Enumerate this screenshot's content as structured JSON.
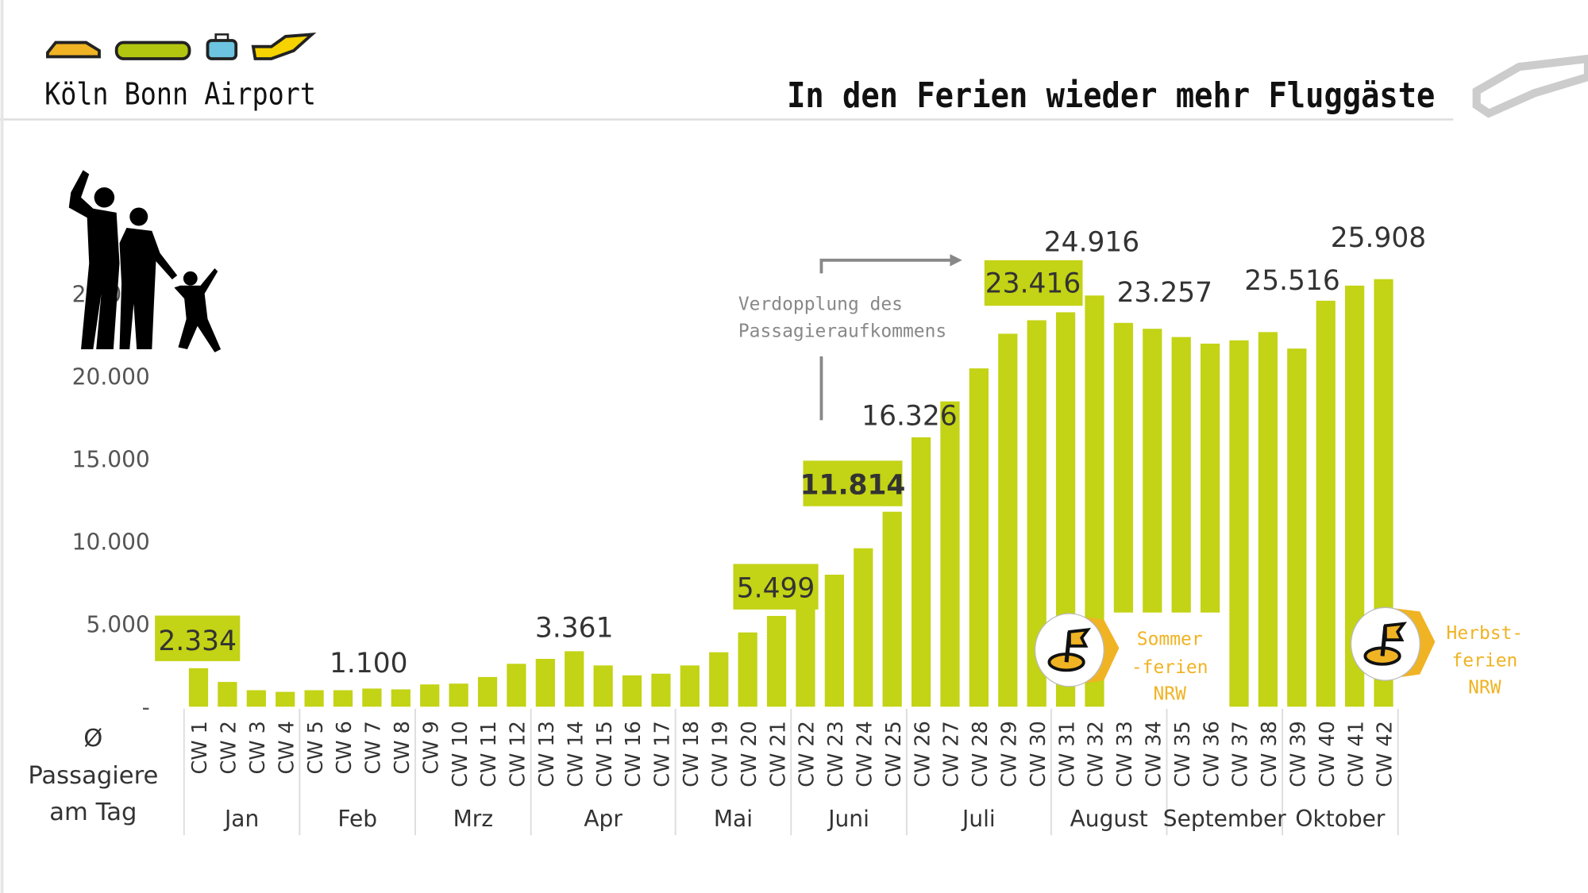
{
  "header": {
    "brand": "Köln Bonn Airport",
    "title": "In den Ferien wieder mehr Fluggäste",
    "icons": [
      "car-icon",
      "bus-icon",
      "luggage-icon",
      "airplane-icon"
    ]
  },
  "colors": {
    "bar": "#c3d315",
    "label_box": "#c3d315",
    "holiday": "#f0b323",
    "text": "#333333"
  },
  "annotation": {
    "line1": "Verdopplung des",
    "line2": "Passagieraufkommens"
  },
  "holidays": [
    {
      "line1": "Sommer",
      "line2": "-ferien",
      "line3": "NRW",
      "icon": "flag-icon"
    },
    {
      "line1": "Herbst-",
      "line2": "ferien",
      "line3": "NRW",
      "icon": "flag-icon"
    }
  ],
  "chart_data": {
    "type": "bar",
    "title": "In den Ferien wieder mehr Fluggäste",
    "ylabel": "Ø Passagiere am Tag",
    "ylim": [
      0,
      26000
    ],
    "yticks": [
      "-",
      "5.000",
      "10.000",
      "15.000",
      "20.000",
      "25.000"
    ],
    "ytick_values": [
      0,
      5000,
      10000,
      15000,
      20000,
      25000
    ],
    "categories": [
      "CW 1",
      "CW 2",
      "CW 3",
      "CW 4",
      "CW 5",
      "CW 6",
      "CW 7",
      "CW 8",
      "CW 9",
      "CW 10",
      "CW 11",
      "CW 12",
      "CW 13",
      "CW 14",
      "CW 15",
      "CW 16",
      "CW 17",
      "CW 18",
      "CW 19",
      "CW 20",
      "CW 21",
      "CW 22",
      "CW 23",
      "CW 24",
      "CW 25",
      "CW 26",
      "CW 27",
      "CW 28",
      "CW 29",
      "CW 30",
      "CW 31",
      "CW 32",
      "CW 33",
      "CW 34",
      "CW 35",
      "CW 36",
      "CW 37",
      "CW 38",
      "CW 39",
      "CW 40",
      "CW 41",
      "CW 42"
    ],
    "values": [
      2334,
      1500,
      1000,
      900,
      1000,
      1000,
      1100,
      1050,
      1350,
      1400,
      1800,
      2600,
      2900,
      3361,
      2500,
      1900,
      2000,
      2500,
      3300,
      4500,
      5499,
      6000,
      8000,
      9600,
      11814,
      16326,
      18500,
      20500,
      22600,
      23416,
      23900,
      24916,
      23257,
      22900,
      22400,
      22000,
      22200,
      22700,
      21700,
      24600,
      25516,
      25908
    ],
    "months": [
      {
        "label": "Jan",
        "weeks": 4
      },
      {
        "label": "Feb",
        "weeks": 4
      },
      {
        "label": "Mrz",
        "weeks": 4
      },
      {
        "label": "Apr",
        "weeks": 5
      },
      {
        "label": "Mai",
        "weeks": 4
      },
      {
        "label": "Juni",
        "weeks": 4
      },
      {
        "label": "Juli",
        "weeks": 5
      },
      {
        "label": "August",
        "weeks": 4
      },
      {
        "label": "September",
        "weeks": 4
      },
      {
        "label": "Oktober",
        "weeks": 4
      }
    ],
    "data_labels": [
      {
        "week": "CW 1",
        "text": "2.334",
        "boxed": true
      },
      {
        "week": "CW 7",
        "text": "1.100",
        "boxed": false
      },
      {
        "week": "CW 14",
        "text": "3.361",
        "boxed": false
      },
      {
        "week": "CW 21",
        "text": "5.499",
        "boxed": true
      },
      {
        "week": "CW 25",
        "text": "11.814",
        "boxed": true
      },
      {
        "week": "CW 26",
        "text": "16.326",
        "boxed": false
      },
      {
        "week": "CW 30",
        "text": "23.416",
        "boxed": true
      },
      {
        "week": "CW 32",
        "text": "24.916",
        "boxed": false
      },
      {
        "week": "CW 33",
        "text": "23.257",
        "boxed": false
      },
      {
        "week": "CW 41",
        "text": "25.516",
        "boxed": false
      },
      {
        "week": "CW 42",
        "text": "25.908",
        "boxed": false
      }
    ],
    "grid": false,
    "legend": "none"
  },
  "ylabel_lines": [
    "Ø",
    "Passagiere",
    "am Tag"
  ]
}
